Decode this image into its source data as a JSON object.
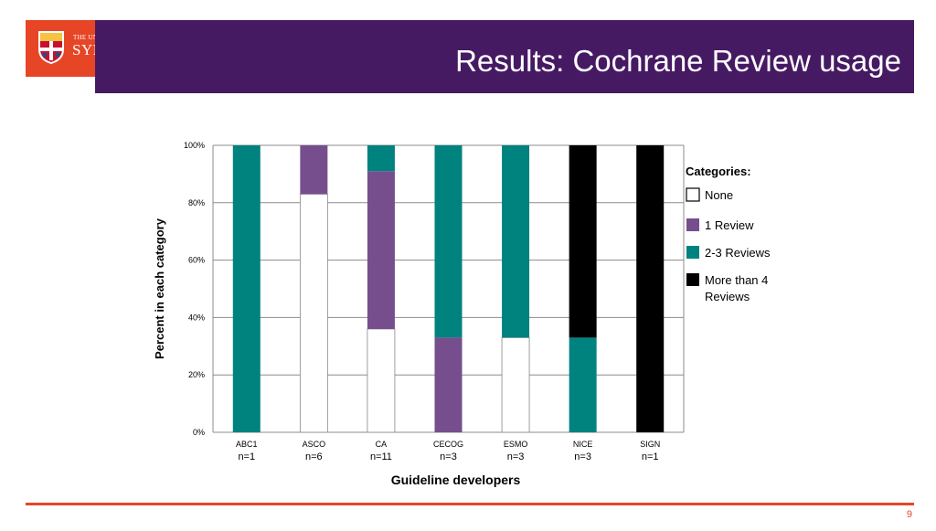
{
  "header": {
    "title": "Results: Cochrane Review usage",
    "logo_small": "THE UNIVERSITY OF",
    "logo_big": "SYDNEY"
  },
  "footer": {
    "page_number": "9"
  },
  "colors": {
    "header_bg": "#461a63",
    "accent": "#e64626",
    "none": "#ffffff",
    "one_review": "#764e8e",
    "two_three_reviews": "#00827f",
    "more_than_4": "#000000"
  },
  "chart_data": {
    "type": "bar",
    "stacked": true,
    "xlabel": "Guideline developers",
    "ylabel": "Percent in each category",
    "ylim": [
      0,
      100
    ],
    "yticks": [
      "0%",
      "20%",
      "40%",
      "60%",
      "80%",
      "100%"
    ],
    "grid": true,
    "categories": [
      "ABC1",
      "ASCO",
      "CA",
      "CECOG",
      "ESMO",
      "NICE",
      "SIGN"
    ],
    "category_counts": [
      "n=1",
      "n=6",
      "n=11",
      "n=3",
      "n=3",
      "n=3",
      "n=1"
    ],
    "legend_title": "Categories:",
    "legend_position": "right",
    "series": [
      {
        "name": "None",
        "color": "#ffffff",
        "values": [
          0,
          83,
          36,
          0,
          33,
          0,
          0
        ]
      },
      {
        "name": "1 Review",
        "color": "#764e8e",
        "values": [
          0,
          17,
          55,
          33,
          0,
          0,
          0
        ]
      },
      {
        "name": "2-3 Reviews",
        "color": "#00827f",
        "values": [
          100,
          0,
          9,
          67,
          67,
          33,
          0
        ]
      },
      {
        "name": "More than 4 Reviews",
        "color": "#000000",
        "values": [
          0,
          0,
          0,
          0,
          0,
          67,
          100
        ]
      }
    ]
  }
}
